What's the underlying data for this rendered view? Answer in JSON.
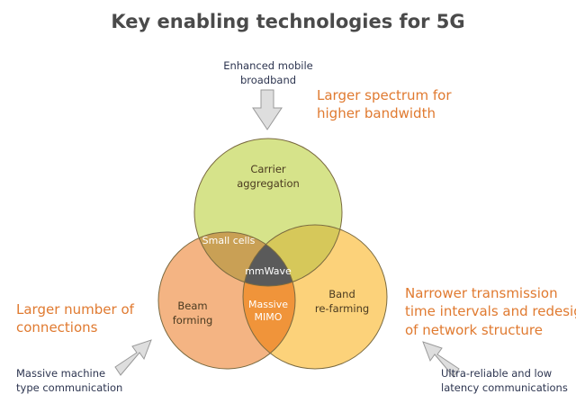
{
  "title": "Key enabling technologies for 5G",
  "drivers": {
    "top": "Enhanced mobile\nbroadband",
    "left": "Massive machine\ntype communication",
    "right": "Ultra-reliable and low\nlatency communications"
  },
  "benefits": {
    "top": "Larger spectrum for\nhigher bandwidth",
    "left": "Larger number of\nconnections",
    "right": "Narrower transmission\ntime intervals and redesign\nof network structure"
  },
  "circles": {
    "top": {
      "line1": "Carrier",
      "line2": "aggregation",
      "color": "#d6e38a"
    },
    "left": {
      "line1": "Beam",
      "line2": "forming",
      "color": "#f4b483"
    },
    "right": {
      "line1": "Band",
      "line2": "re-farming",
      "color": "#fcd27a"
    }
  },
  "overlaps": {
    "top_left": "Small cells",
    "left_right_line1": "Massive",
    "left_right_line2": "MIMO",
    "center": "mmWave"
  },
  "colors": {
    "top_left": "#c9a055",
    "top_right": "#d6c85a",
    "left_right": "#f0943a",
    "center": "#5a5a5a"
  }
}
